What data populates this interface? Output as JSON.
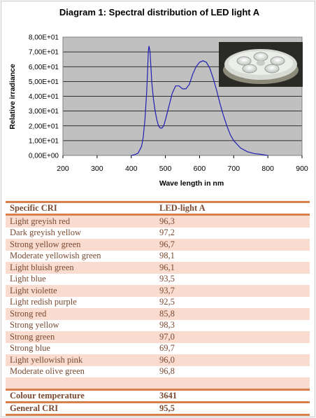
{
  "chart_data": {
    "type": "line",
    "title": "Diagram 1: Spectral distribution of LED light A",
    "xlabel": "Wave length in nm",
    "ylabel": "Relative irradiance",
    "xlim": [
      200,
      900
    ],
    "ylim": [
      0,
      80
    ],
    "xticks": [
      200,
      300,
      400,
      500,
      600,
      700,
      800,
      900
    ],
    "yticks": [
      0,
      10,
      20,
      30,
      40,
      50,
      60,
      70,
      80
    ],
    "ytick_labels": [
      "0,00E+00",
      "1,00E+01",
      "2,00E+01",
      "3,00E+01",
      "4,00E+01",
      "5,00E+01",
      "6,00E+01",
      "7,00E+01",
      "8,00E+01"
    ],
    "grid": true,
    "series": [
      {
        "x": [
          400,
          410,
          420,
          430,
          435,
          440,
          445,
          448,
          450,
          452,
          455,
          458,
          460,
          465,
          470,
          475,
          480,
          485,
          490,
          495,
          500,
          510,
          520,
          530,
          540,
          550,
          560,
          570,
          580,
          590,
          600,
          610,
          620,
          630,
          640,
          650,
          660,
          670,
          680,
          690,
          700,
          720,
          740,
          760,
          780,
          800
        ],
        "y": [
          0,
          0.5,
          1.5,
          6,
          12,
          24,
          42,
          58,
          70,
          74,
          70,
          58,
          50,
          38,
          30,
          24,
          20,
          18.5,
          18.5,
          20,
          24,
          33,
          42,
          47,
          47,
          45,
          45,
          48,
          55,
          60,
          63,
          64,
          63,
          59,
          52,
          44,
          35,
          27,
          20,
          14,
          10,
          5,
          2.5,
          1.3,
          0.7,
          0
        ]
      }
    ],
    "colors": {
      "line": "#1f1fb4",
      "plot_bg": "#c0c0c0"
    }
  },
  "table": {
    "header": [
      "Specific CRI",
      "LED-light A"
    ],
    "rows": [
      [
        "Light greyish red",
        "96,3"
      ],
      [
        "Dark greyish yellow",
        "97,2"
      ],
      [
        "Strong yellow green",
        "96,7"
      ],
      [
        "Moderate yellowish green",
        "98,1"
      ],
      [
        "Light bluish green",
        "96,1"
      ],
      [
        "Light blue",
        "93,5"
      ],
      [
        "Light violette",
        "93,7"
      ],
      [
        "Light redish purple",
        "92,5"
      ],
      [
        "Strong red",
        "85,8"
      ],
      [
        "Strong yellow",
        "98,3"
      ],
      [
        "Strong green",
        "97,0"
      ],
      [
        "Strong blue",
        "69,7"
      ],
      [
        "Light yellowish pink",
        "96,0"
      ],
      [
        "Moderate olive green",
        "96,8"
      ]
    ],
    "colour_temperature_label": "Colour temperature",
    "colour_temperature_value": "3641",
    "general_cri_label": "General CRI",
    "general_cri_value": "95,5"
  }
}
